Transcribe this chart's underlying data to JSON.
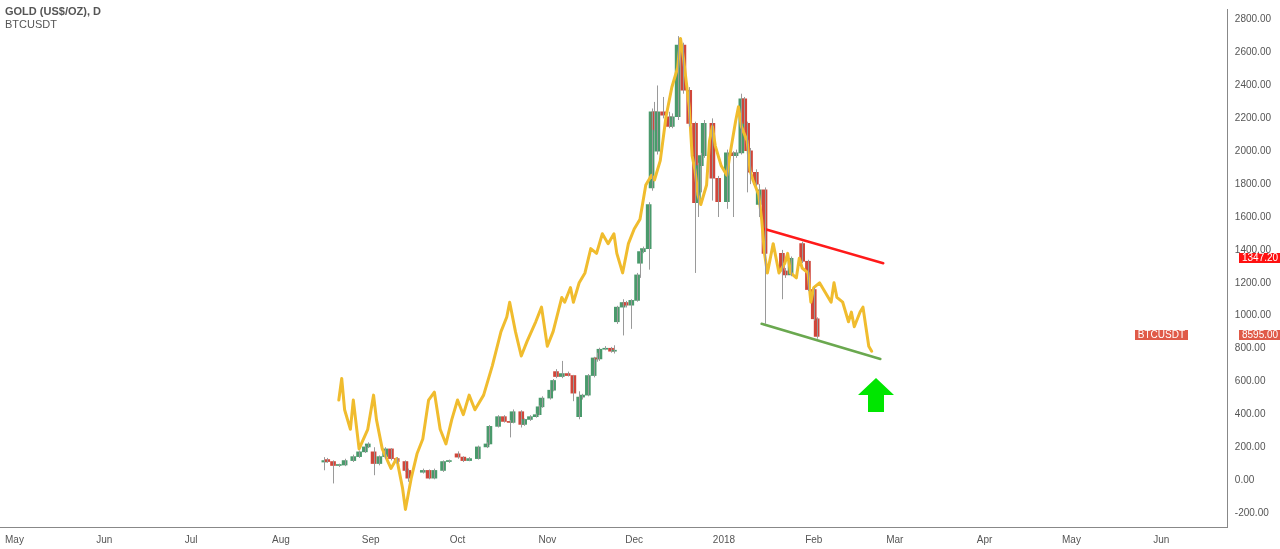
{
  "chart_data": {
    "type": "candlestick",
    "title": "GOLD (US$/OZ), D",
    "subtitle": "BTCUSDT",
    "xlim": [
      "2017-04-26",
      "2018-06-24"
    ],
    "xticks": [
      {
        "value": "2017-05-01",
        "label": "May"
      },
      {
        "value": "2017-06-01",
        "label": "Jun"
      },
      {
        "value": "2017-07-01",
        "label": "Jul"
      },
      {
        "value": "2017-08-01",
        "label": "Aug"
      },
      {
        "value": "2017-09-01",
        "label": "Sep"
      },
      {
        "value": "2017-10-01",
        "label": "Oct"
      },
      {
        "value": "2017-11-01",
        "label": "Nov"
      },
      {
        "value": "2017-12-01",
        "label": "Dec"
      },
      {
        "value": "2018-01-01",
        "label": "2018"
      },
      {
        "value": "2018-02-01",
        "label": "Feb"
      },
      {
        "value": "2018-03-01",
        "label": "Mar"
      },
      {
        "value": "2018-04-01",
        "label": "Apr"
      },
      {
        "value": "2018-05-01",
        "label": "May"
      },
      {
        "value": "2018-06-01",
        "label": "Jun"
      }
    ],
    "ylim": [
      -285,
      2865
    ],
    "yticks": [
      {
        "value": -200,
        "label": "-200.00"
      },
      {
        "value": 0,
        "label": "0.00"
      },
      {
        "value": 200,
        "label": "200.00"
      },
      {
        "value": 400,
        "label": "400.00"
      },
      {
        "value": 600,
        "label": "600.00"
      },
      {
        "value": 800,
        "label": "800.00"
      },
      {
        "value": 1000,
        "label": "1000.00"
      },
      {
        "value": 1200,
        "label": "1200.00"
      },
      {
        "value": 1400,
        "label": "1400.00"
      },
      {
        "value": 1600,
        "label": "1600.00"
      },
      {
        "value": 1800,
        "label": "1800.00"
      },
      {
        "value": 2000,
        "label": "2000.00"
      },
      {
        "value": 2200,
        "label": "2200.00"
      },
      {
        "value": 2400,
        "label": "2400.00"
      },
      {
        "value": 2600,
        "label": "2600.00"
      },
      {
        "value": 2800,
        "label": "2800.00"
      }
    ],
    "grid": false,
    "legend": false,
    "annotations": [
      "1347.20",
      "8595.00",
      "BTCUSDT"
    ],
    "series": [
      {
        "colors": [
          "#4a9a6c",
          "#d0463a",
          "#d0463a",
          "#4a9a6c",
          "#4a9a6c",
          "#4a9a6c",
          "#4a9a6c",
          "#4a9a6c",
          "#4a9a6c",
          "#d0463a",
          "#4a9a6c",
          "#4a9a6c",
          "#d0463a",
          "#d0463a",
          "#d0463a",
          "#d0463a",
          "#4a9a6c",
          "#d0463a",
          "#4a9a6c",
          "#4a9a6c",
          "#4a9a6c",
          "#d0463a",
          "#d0463a",
          "#4a9a6c",
          "#4a9a6c",
          "#4a9a6c",
          "#4a9a6c",
          "#4a9a6c",
          "#d0463a",
          "#d0463a",
          "#4a9a6c",
          "#d0463a",
          "#4a9a6c",
          "#4a9a6c",
          "#4a9a6c",
          "#4a9a6c",
          "#4a9a6c",
          "#4a9a6c",
          "#4a9a6c",
          "#d0463a",
          "#4a9a6c",
          "#d0463a",
          "#d0463a",
          "#4a9a6c",
          "#4a9a6c",
          "#4a9a6c",
          "#4a9a6c",
          "#d0463a",
          "#4a9a6c",
          "#4a9a6c",
          "#d0463a",
          "#4a9a6c",
          "#4a9a6c",
          "#4a9a6c",
          "#d0463a",
          "#4a9a6c",
          "#4a9a6c",
          "#4a9a6c",
          "#4a9a6c",
          "#4a9a6c",
          "#4a9a6c",
          "#d0463a",
          "#4a9a6c",
          "#d0463a",
          "#d0463a",
          "#4a9a6c",
          "#4a9a6c",
          "#d0463a",
          "#d0463a",
          "#d0463a",
          "#4a9a6c",
          "#4a9a6c",
          "#4a9a6c",
          "#d0463a",
          "#d0463a",
          "#4a9a6c",
          "#d0463a",
          "#4a9a6c",
          "#4a9a6c",
          "#d0463a",
          "#d0463a",
          "#d0463a",
          "#d0463a",
          "#4a9a6c",
          "#d0463a",
          "#d0463a",
          "#d0463a",
          "#4a9a6c",
          "#d0463a",
          "#d0463a",
          "#d0463a",
          "#d0463a"
        ],
        "x": [
          "2017-08-16",
          "2017-08-17",
          "2017-08-19",
          "2017-08-21",
          "2017-08-23",
          "2017-08-26",
          "2017-08-28",
          "2017-08-30",
          "2017-08-31",
          "2017-09-02",
          "2017-09-04",
          "2017-09-06",
          "2017-09-08",
          "2017-09-10",
          "2017-09-13",
          "2017-09-14",
          "2017-09-19",
          "2017-09-21",
          "2017-09-23",
          "2017-09-26",
          "2017-09-28",
          "2017-10-01",
          "2017-10-03",
          "2017-10-05",
          "2017-10-08",
          "2017-10-11",
          "2017-10-12",
          "2017-10-15",
          "2017-10-17",
          "2017-10-19",
          "2017-10-20",
          "2017-10-23",
          "2017-10-24",
          "2017-10-26",
          "2017-10-28",
          "2017-10-29",
          "2017-10-30",
          "2017-11-02",
          "2017-11-03",
          "2017-11-04",
          "2017-11-06",
          "2017-11-08",
          "2017-11-10",
          "2017-11-12",
          "2017-11-13",
          "2017-11-15",
          "2017-11-17",
          "2017-11-18",
          "2017-11-19",
          "2017-11-21",
          "2017-11-23",
          "2017-11-24",
          "2017-11-25",
          "2017-11-27",
          "2017-11-28",
          "2017-11-30",
          "2017-12-02",
          "2017-12-03",
          "2017-12-04",
          "2017-12-06",
          "2017-12-07",
          "2017-12-08",
          "2017-12-09",
          "2017-12-11",
          "2017-12-13",
          "2017-12-14",
          "2017-12-16",
          "2017-12-18",
          "2017-12-20",
          "2017-12-22",
          "2017-12-23",
          "2017-12-24",
          "2017-12-25",
          "2017-12-28",
          "2017-12-30",
          "2018-01-02",
          "2018-01-04",
          "2018-01-05",
          "2018-01-07",
          "2018-01-08",
          "2018-01-09",
          "2018-01-10",
          "2018-01-12",
          "2018-01-13",
          "2018-01-15",
          "2018-01-21",
          "2018-01-22",
          "2018-01-24",
          "2018-01-28",
          "2018-01-30",
          "2018-02-01",
          "2018-02-02"
        ],
        "ohlc": [
          [
            110,
            140,
            60,
            119
          ],
          [
            125,
            135,
            105,
            113
          ],
          [
            113,
            120,
            -20,
            89
          ],
          [
            89,
            100,
            80,
            92
          ],
          [
            92,
            130,
            85,
            119
          ],
          [
            119,
            155,
            110,
            143
          ],
          [
            143,
            180,
            135,
            172
          ],
          [
            172,
            210,
            165,
            202
          ],
          [
            202,
            230,
            195,
            220
          ],
          [
            172,
            200,
            30,
            101
          ],
          [
            101,
            150,
            90,
            143
          ],
          [
            143,
            200,
            130,
            190
          ],
          [
            190,
            195,
            120,
            131
          ],
          [
            131,
            140,
            100,
            113
          ],
          [
            113,
            120,
            50,
            59
          ],
          [
            59,
            70,
            -10,
            12
          ],
          [
            48,
            70,
            40,
            59
          ],
          [
            59,
            65,
            5,
            12
          ],
          [
            12,
            70,
            5,
            59
          ],
          [
            59,
            120,
            50,
            113
          ],
          [
            113,
            125,
            105,
            116
          ],
          [
            160,
            175,
            130,
            140
          ],
          [
            140,
            145,
            110,
            119
          ],
          [
            119,
            140,
            115,
            131
          ],
          [
            131,
            210,
            125,
            202
          ],
          [
            202,
            230,
            195,
            220
          ],
          [
            220,
            335,
            215,
            327
          ],
          [
            327,
            395,
            320,
            386
          ],
          [
            386,
            395,
            350,
            357
          ],
          [
            357,
            365,
            260,
            351
          ],
          [
            351,
            430,
            345,
            416
          ],
          [
            416,
            425,
            320,
            339
          ],
          [
            339,
            375,
            330,
            369
          ],
          [
            369,
            395,
            360,
            386
          ],
          [
            386,
            405,
            380,
            398
          ],
          [
            398,
            455,
            395,
            446
          ],
          [
            446,
            510,
            440,
            499
          ],
          [
            499,
            555,
            490,
            547
          ],
          [
            547,
            615,
            540,
            606
          ],
          [
            660,
            675,
            620,
            630
          ],
          [
            630,
            725,
            620,
            648
          ],
          [
            648,
            660,
            630,
            636
          ],
          [
            636,
            640,
            480,
            529
          ],
          [
            386,
            540,
            370,
            505
          ],
          [
            505,
            525,
            490,
            517
          ],
          [
            517,
            645,
            510,
            636
          ],
          [
            636,
            750,
            625,
            743
          ],
          [
            743,
            775,
            720,
            737
          ],
          [
            737,
            805,
            725,
            796
          ],
          [
            796,
            815,
            790,
            802
          ],
          [
            802,
            810,
            775,
            784
          ],
          [
            784,
            820,
            770,
            790
          ],
          [
            963,
            1060,
            950,
            1052
          ],
          [
            1052,
            1100,
            880,
            1080
          ],
          [
            1080,
            1090,
            1050,
            1064
          ],
          [
            1064,
            1100,
            920,
            1093
          ],
          [
            1093,
            1260,
            1085,
            1248
          ],
          [
            1319,
            1400,
            1230,
            1390
          ],
          [
            1390,
            1420,
            1380,
            1408
          ],
          [
            1408,
            1690,
            1280,
            1675
          ],
          [
            1777,
            2260,
            1760,
            2240
          ],
          [
            2240,
            2300,
            2120,
            2133
          ],
          [
            2000,
            2400,
            1980,
            2240
          ],
          [
            2240,
            2330,
            2200,
            2220
          ],
          [
            2210,
            2240,
            2140,
            2151
          ],
          [
            2151,
            2230,
            2140,
            2210
          ],
          [
            2210,
            2700,
            2190,
            2645
          ],
          [
            2645,
            2660,
            2350,
            2371
          ],
          [
            2371,
            2390,
            2150,
            2169
          ],
          [
            2169,
            2180,
            1260,
            1688
          ],
          [
            1688,
            1930,
            1600,
            1913
          ],
          [
            1913,
            1990,
            1750,
            1973
          ],
          [
            1973,
            2190,
            1960,
            2169
          ],
          [
            2169,
            2200,
            1700,
            1836
          ],
          [
            1836,
            1850,
            1600,
            1694
          ],
          [
            1694,
            2010,
            1650,
            1990
          ],
          [
            1990,
            2000,
            1600,
            1973
          ],
          [
            1973,
            2010,
            1960,
            1990
          ],
          [
            1990,
            2350,
            1980,
            2318
          ],
          [
            2318,
            2330,
            2150,
            2169
          ],
          [
            2169,
            2180,
            1750,
            2003
          ],
          [
            2003,
            2020,
            1800,
            1872
          ],
          [
            1872,
            1890,
            1790,
            1800
          ],
          [
            1676,
            1800,
            1600,
            1765
          ],
          [
            1765,
            1780,
            950,
            1379
          ],
          [
            1379,
            1400,
            1100,
            1272
          ],
          [
            1272,
            1290,
            1230,
            1248
          ],
          [
            1248,
            1360,
            1240,
            1349
          ],
          [
            1438,
            1450,
            1320,
            1331
          ],
          [
            1331,
            1340,
            1150,
            1159
          ],
          [
            1159,
            1170,
            970,
            981
          ],
          [
            981,
            990,
            860,
            874
          ]
        ]
      },
      {
        "type": "line",
        "color": "#f0bc2e",
        "x": [
          "2017-08-21",
          "2017-08-22",
          "2017-08-23",
          "2017-08-25",
          "2017-08-26",
          "2017-08-28",
          "2017-08-31",
          "2017-09-02",
          "2017-09-03",
          "2017-09-05",
          "2017-09-08",
          "2017-09-10",
          "2017-09-12",
          "2017-09-13",
          "2017-09-15",
          "2017-09-17",
          "2017-09-19",
          "2017-09-21",
          "2017-09-23",
          "2017-09-25",
          "2017-09-27",
          "2017-09-29",
          "2017-10-01",
          "2017-10-03",
          "2017-10-05",
          "2017-10-07",
          "2017-10-10",
          "2017-10-13",
          "2017-10-16",
          "2017-10-18",
          "2017-10-19",
          "2017-10-21",
          "2017-10-23",
          "2017-10-25",
          "2017-10-28",
          "2017-10-30",
          "2017-11-01",
          "2017-11-03",
          "2017-11-06",
          "2017-11-07",
          "2017-11-09",
          "2017-11-10",
          "2017-11-12",
          "2017-11-14",
          "2017-11-16",
          "2017-11-18",
          "2017-11-20",
          "2017-11-22",
          "2017-11-24",
          "2017-11-25",
          "2017-11-27",
          "2017-11-29",
          "2017-12-01",
          "2017-12-03",
          "2017-12-05",
          "2017-12-07",
          "2017-12-08",
          "2017-12-10",
          "2017-12-12",
          "2017-12-14",
          "2017-12-16",
          "2017-12-17",
          "2017-12-18",
          "2017-12-20",
          "2017-12-21",
          "2017-12-22",
          "2017-12-23",
          "2017-12-24",
          "2017-12-26",
          "2017-12-27",
          "2017-12-28",
          "2017-12-29",
          "2017-12-31",
          "2018-01-02",
          "2018-01-03",
          "2018-01-05",
          "2018-01-06",
          "2018-01-07",
          "2018-01-09",
          "2018-01-10",
          "2018-01-11",
          "2018-01-13",
          "2018-01-14",
          "2018-01-15",
          "2018-01-16",
          "2018-01-18",
          "2018-01-19",
          "2018-01-20",
          "2018-01-22",
          "2018-01-23",
          "2018-01-24",
          "2018-01-26",
          "2018-01-27",
          "2018-01-28",
          "2018-01-30",
          "2018-01-31",
          "2018-02-01",
          "2018-02-03",
          "2018-02-05",
          "2018-02-07",
          "2018-02-08",
          "2018-02-09",
          "2018-02-11",
          "2018-02-13",
          "2018-02-14",
          "2018-02-15",
          "2018-02-17",
          "2018-02-18",
          "2018-02-19",
          "2018-02-20",
          "2018-02-21"
        ],
        "values": [
          487,
          618,
          428,
          309,
          487,
          190,
          309,
          517,
          368,
          190,
          71,
          131,
          -48,
          -178,
          12,
          160,
          250,
          487,
          535,
          309,
          220,
          368,
          487,
          398,
          517,
          428,
          517,
          695,
          903,
          992,
          1082,
          903,
          755,
          844,
          963,
          1052,
          814,
          903,
          1111,
          1082,
          1171,
          1082,
          1200,
          1260,
          1408,
          1379,
          1498,
          1438,
          1498,
          1379,
          1260,
          1438,
          1527,
          1587,
          1795,
          1854,
          1825,
          1943,
          2211,
          2389,
          2508,
          2686,
          2567,
          2270,
          1973,
          1884,
          1735,
          1676,
          1795,
          2062,
          2151,
          2033,
          1914,
          1854,
          1973,
          2181,
          2270,
          2151,
          2062,
          1884,
          1825,
          1735,
          1587,
          1379,
          1260,
          1438,
          1349,
          1260,
          1319,
          1379,
          1260,
          1230,
          1349,
          1290,
          1260,
          1082,
          1171,
          1200,
          1141,
          1082,
          1200,
          1111,
          1082,
          963,
          1022,
          933,
          1022,
          1052,
          933,
          814,
          784
        ]
      },
      {
        "type": "line",
        "color": "#ff1a1a",
        "x": [
          "2018-01-15",
          "2018-02-25"
        ],
        "values": [
          1527,
          1319
        ]
      },
      {
        "type": "line",
        "color": "#6aa84f",
        "x": [
          "2018-01-14",
          "2018-02-24"
        ],
        "values": [
          951,
          737
        ]
      }
    ]
  }
}
